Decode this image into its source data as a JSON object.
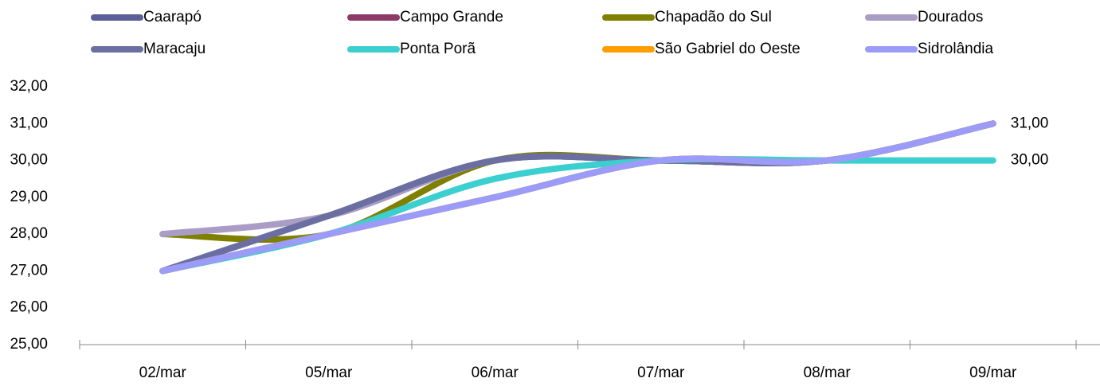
{
  "chart_data": {
    "type": "line",
    "categories": [
      "02/mar",
      "05/mar",
      "06/mar",
      "07/mar",
      "08/mar",
      "09/mar"
    ],
    "series": [
      {
        "name": "Caarapó",
        "color": "#5b5f97",
        "values": [
          27,
          28.5,
          30,
          30,
          30,
          31
        ]
      },
      {
        "name": "Campo Grande",
        "color": "#8e3a68",
        "values": [
          27,
          28,
          29,
          30,
          30,
          31
        ]
      },
      {
        "name": "Chapadão do Sul",
        "color": "#7f7f00",
        "values": [
          28,
          28,
          30,
          30,
          30,
          31
        ]
      },
      {
        "name": "Dourados",
        "color": "#a99dc6",
        "values": [
          28,
          28.5,
          30,
          30,
          30,
          31
        ]
      },
      {
        "name": "Maracaju",
        "color": "#6b6ea0",
        "values": [
          27,
          28.5,
          30,
          30,
          30,
          31
        ]
      },
      {
        "name": "Ponta Porã",
        "color": "#3ccfcf",
        "values": [
          27,
          28,
          29.5,
          30,
          30,
          30
        ],
        "value_labels": [
          null,
          null,
          null,
          null,
          null,
          "30,00"
        ]
      },
      {
        "name": "São Gabriel do Oeste",
        "color": "#ff9e00",
        "values": [
          27,
          28,
          29,
          30,
          30,
          31
        ]
      },
      {
        "name": "Sidrolândia",
        "color": "#9b9bfa",
        "values": [
          27,
          28,
          29,
          30,
          30,
          31
        ],
        "value_labels": [
          null,
          null,
          null,
          null,
          null,
          "31,00"
        ]
      }
    ],
    "ylim": [
      25,
      32
    ],
    "yticks": [
      {
        "value": 25,
        "label": "25,00"
      },
      {
        "value": 26,
        "label": "26,00"
      },
      {
        "value": 27,
        "label": "27,00"
      },
      {
        "value": 28,
        "label": "28,00"
      },
      {
        "value": 29,
        "label": "29,00"
      },
      {
        "value": 30,
        "label": "30,00"
      },
      {
        "value": 31,
        "label": "31,00"
      },
      {
        "value": 32,
        "label": "32,00"
      }
    ],
    "legend": "top"
  }
}
